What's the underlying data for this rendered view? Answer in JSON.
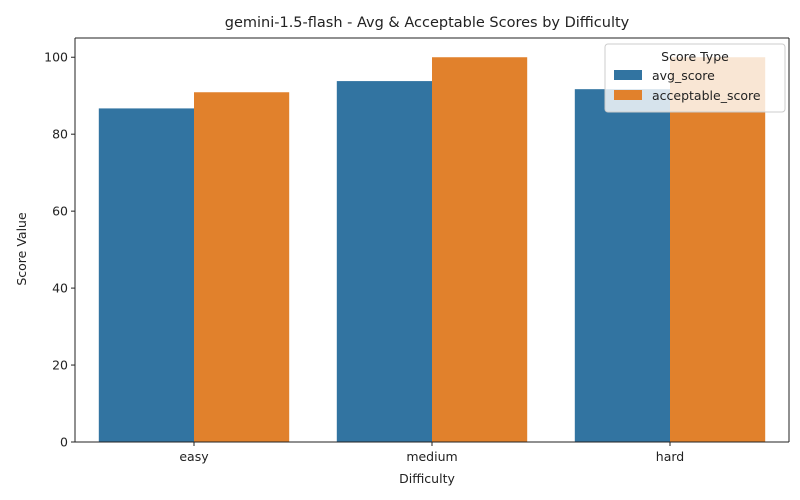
{
  "chart_data": {
    "type": "bar",
    "title": "gemini-1.5-flash - Avg & Acceptable Scores by Difficulty",
    "xlabel": "Difficulty",
    "ylabel": "Score Value",
    "categories": [
      "easy",
      "medium",
      "hard"
    ],
    "series": [
      {
        "name": "avg_score",
        "values": [
          86.7,
          93.8,
          91.7
        ],
        "color": "#3274a1"
      },
      {
        "name": "acceptable_score",
        "values": [
          90.9,
          100,
          100
        ],
        "color": "#e1812c"
      }
    ],
    "ylim": [
      0,
      105
    ],
    "yticks": [
      0,
      20,
      40,
      60,
      80,
      100
    ],
    "grid": false,
    "legend": {
      "title": "Score Type",
      "position": "top-right"
    }
  }
}
